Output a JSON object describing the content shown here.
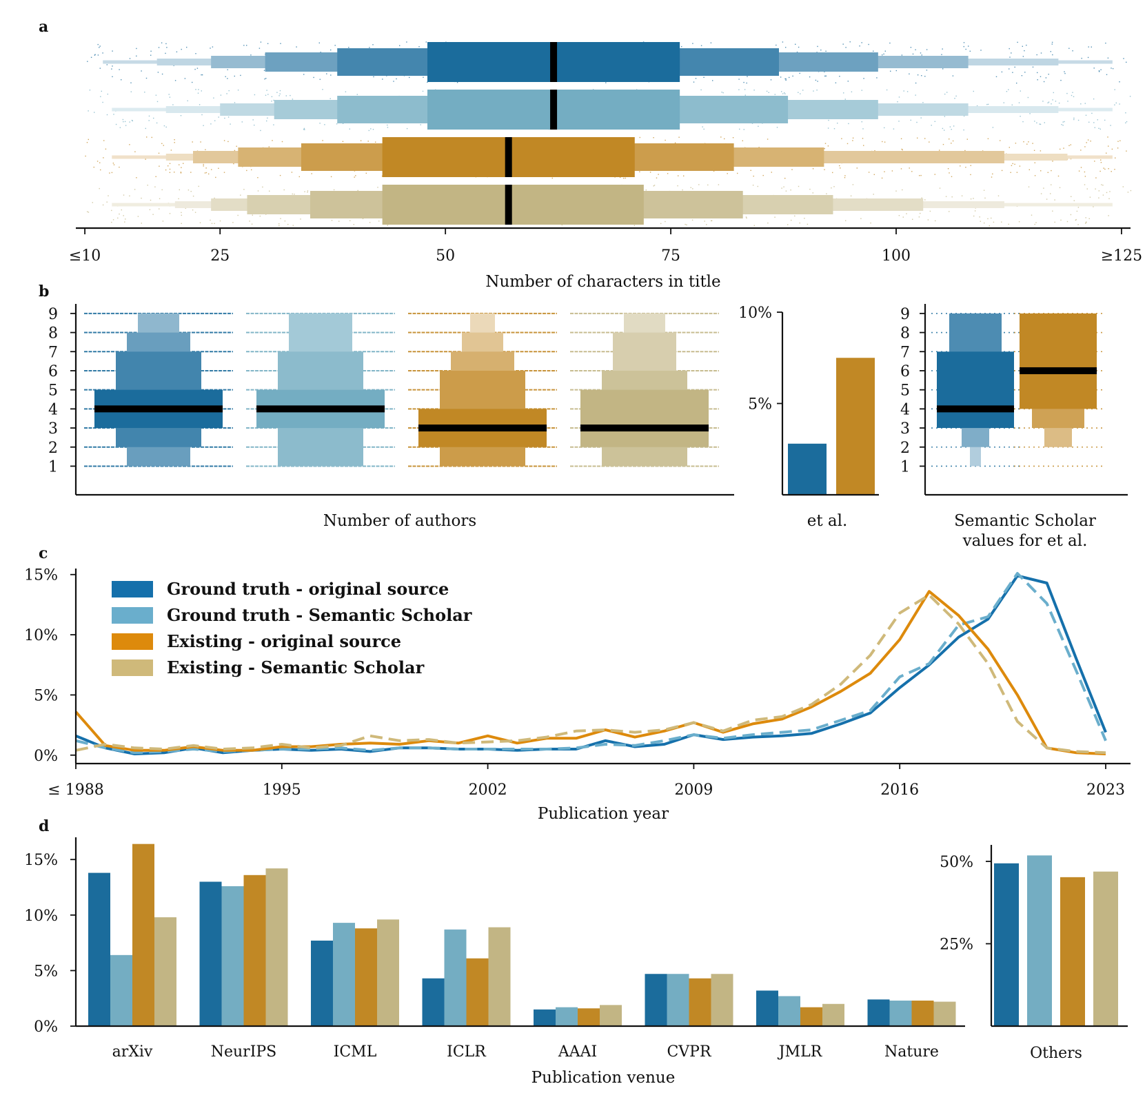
{
  "colors": {
    "gt_orig": "#1b6c9c",
    "gt_ss": "#74adc2",
    "ex_orig": "#c18825",
    "ex_ss": "#c2b584"
  },
  "series_names": [
    "Ground truth - original source",
    "Ground truth - Semantic Scholar",
    "Existing - original source",
    "Existing - Semantic Scholar"
  ],
  "panels": {
    "a": "a",
    "b": "b",
    "c": "c",
    "d": "d"
  },
  "chart_data": [
    {
      "panel": "a",
      "type": "boxen",
      "xlabel": "Number of characters in title",
      "xlim": [
        9,
        126
      ],
      "xticks": [
        10,
        25,
        50,
        75,
        100,
        125
      ],
      "xtick_labels": [
        "≤10",
        "25",
        "50",
        "75",
        "100",
        "≥125"
      ],
      "series": [
        {
          "name": "Ground truth - original source",
          "median": 62,
          "levels": [
            [
              48,
              76
            ],
            [
              38,
              87
            ],
            [
              30,
              98
            ],
            [
              24,
              108
            ],
            [
              18,
              118
            ],
            [
              12,
              124
            ]
          ]
        },
        {
          "name": "Ground truth - Semantic Scholar",
          "median": 62,
          "levels": [
            [
              48,
              76
            ],
            [
              38,
              88
            ],
            [
              31,
              98
            ],
            [
              25,
              108
            ],
            [
              19,
              118
            ],
            [
              13,
              124
            ]
          ]
        },
        {
          "name": "Existing - original source",
          "median": 57,
          "levels": [
            [
              43,
              71
            ],
            [
              34,
              82
            ],
            [
              27,
              92
            ],
            [
              22,
              112
            ],
            [
              19,
              119
            ],
            [
              13,
              124
            ]
          ]
        },
        {
          "name": "Existing - Semantic Scholar",
          "median": 57,
          "levels": [
            [
              43,
              72
            ],
            [
              35,
              83
            ],
            [
              28,
              93
            ],
            [
              24,
              103
            ],
            [
              20,
              112
            ],
            [
              13,
              124
            ]
          ]
        }
      ]
    },
    {
      "panel": "b",
      "type": "boxen",
      "xlabel": "Number of authors",
      "ylim": [
        -0.5,
        9.5
      ],
      "yticks": [
        1,
        2,
        3,
        4,
        5,
        6,
        7,
        8,
        9
      ],
      "series": [
        {
          "name": "Ground truth - original source",
          "median": 4,
          "levels": [
            [
              3,
              5
            ],
            [
              2,
              7
            ],
            [
              1,
              8
            ],
            [
              1,
              9
            ]
          ]
        },
        {
          "name": "Ground truth - Semantic Scholar",
          "median": 4,
          "levels": [
            [
              3,
              5
            ],
            [
              1,
              7
            ],
            [
              1,
              9
            ]
          ]
        },
        {
          "name": "Existing - original source",
          "median": 3,
          "levels": [
            [
              2,
              4
            ],
            [
              1,
              6
            ],
            [
              1,
              7
            ],
            [
              1,
              8
            ],
            [
              1,
              9
            ]
          ]
        },
        {
          "name": "Existing - Semantic Scholar",
          "median": 3,
          "levels": [
            [
              2,
              5
            ],
            [
              1,
              6
            ],
            [
              1,
              8
            ],
            [
              1,
              9
            ]
          ]
        }
      ]
    },
    {
      "panel": "b-et-al",
      "type": "bar",
      "xlabel": "et al.",
      "ylim": [
        0,
        10
      ],
      "yticks": [
        5,
        10
      ],
      "ytick_labels": [
        "5%",
        "10%"
      ],
      "series": [
        {
          "name": "Ground truth - original source",
          "value": 2.8
        },
        {
          "name": "Existing - original source",
          "value": 7.5
        }
      ]
    },
    {
      "panel": "b-semantic-scholar",
      "type": "boxen",
      "xlabel": "Semantic Scholar values for et al.",
      "ylim": [
        -0.5,
        9.5
      ],
      "yticks": [
        1,
        2,
        3,
        4,
        5,
        6,
        7,
        8,
        9
      ],
      "series": [
        {
          "name": "Ground truth - original source",
          "median": 4,
          "levels": [
            [
              3,
              7
            ],
            [
              3,
              9
            ],
            [
              2,
              9
            ],
            [
              1,
              9
            ]
          ]
        },
        {
          "name": "Existing - original source",
          "median": 6,
          "levels": [
            [
              4,
              9
            ],
            [
              3,
              9
            ],
            [
              2,
              9
            ]
          ]
        }
      ]
    },
    {
      "panel": "c",
      "type": "line",
      "xlabel": "Publication year",
      "x": [
        1988,
        1989,
        1990,
        1991,
        1992,
        1993,
        1994,
        1995,
        1996,
        1997,
        1998,
        1999,
        2000,
        2001,
        2002,
        2003,
        2004,
        2005,
        2006,
        2007,
        2008,
        2009,
        2010,
        2011,
        2012,
        2013,
        2014,
        2015,
        2016,
        2017,
        2018,
        2019,
        2020,
        2021,
        2022,
        2023
      ],
      "xticks": [
        1988,
        1995,
        2002,
        2009,
        2016,
        2023
      ],
      "xtick_labels": [
        "≤ 1988",
        "1995",
        "2002",
        "2009",
        "2016",
        "2023"
      ],
      "ylim": [
        -0.7,
        15.5
      ],
      "yticks": [
        0,
        5,
        10,
        15
      ],
      "ytick_labels": [
        "0%",
        "5%",
        "10%",
        "15%"
      ],
      "series": [
        {
          "name": "Ground truth - original source",
          "dash": false,
          "values": [
            1.6,
            0.6,
            0.1,
            0.2,
            0.6,
            0.2,
            0.4,
            0.5,
            0.4,
            0.5,
            0.3,
            0.6,
            0.6,
            0.5,
            0.5,
            0.4,
            0.5,
            0.5,
            1.2,
            0.7,
            0.9,
            1.7,
            1.3,
            1.5,
            1.6,
            1.8,
            2.6,
            3.5,
            5.6,
            7.5,
            9.8,
            11.3,
            14.9,
            14.3,
            8.0,
            1.9
          ]
        },
        {
          "name": "Ground truth - Semantic Scholar",
          "dash": true,
          "values": [
            1.2,
            0.6,
            0.2,
            0.3,
            0.5,
            0.3,
            0.4,
            0.5,
            0.5,
            0.6,
            0.4,
            0.6,
            0.6,
            0.5,
            0.5,
            0.5,
            0.5,
            0.6,
            0.9,
            0.8,
            1.2,
            1.7,
            1.4,
            1.7,
            1.9,
            2.1,
            2.9,
            3.7,
            6.5,
            7.6,
            10.8,
            11.5,
            15.1,
            12.6,
            7.0,
            1.2
          ]
        },
        {
          "name": "Existing - original source",
          "dash": false,
          "values": [
            3.6,
            0.8,
            0.4,
            0.4,
            0.7,
            0.4,
            0.4,
            0.7,
            0.7,
            0.9,
            1.0,
            0.9,
            1.2,
            1.0,
            1.6,
            1.0,
            1.4,
            1.4,
            2.1,
            1.5,
            2.0,
            2.7,
            1.9,
            2.6,
            3.0,
            4.0,
            5.3,
            6.8,
            9.6,
            13.6,
            11.6,
            8.8,
            5.0,
            0.6,
            0.2,
            0.1
          ]
        },
        {
          "name": "Existing - Semantic Scholar",
          "dash": true,
          "values": [
            0.4,
            0.9,
            0.6,
            0.5,
            0.8,
            0.5,
            0.6,
            0.9,
            0.6,
            0.8,
            1.6,
            1.2,
            1.3,
            1.0,
            1.1,
            1.2,
            1.5,
            2.0,
            2.1,
            1.9,
            2.1,
            2.7,
            2.0,
            2.9,
            3.2,
            4.2,
            5.9,
            8.3,
            11.8,
            13.3,
            10.9,
            7.6,
            2.8,
            0.6,
            0.3,
            0.2
          ]
        }
      ]
    },
    {
      "panel": "d",
      "type": "bar",
      "xlabel": "Publication venue",
      "categories": [
        "arXiv",
        "NeurIPS",
        "ICML",
        "ICLR",
        "AAAI",
        "CVPR",
        "JMLR",
        "Nature"
      ],
      "ylim": [
        0,
        17
      ],
      "yticks": [
        0,
        5,
        10,
        15
      ],
      "ytick_labels": [
        "0%",
        "5%",
        "10%",
        "15%"
      ],
      "series": [
        {
          "name": "Ground truth - original source",
          "values": [
            13.8,
            13.0,
            7.7,
            4.3,
            1.5,
            4.7,
            3.2,
            2.4
          ]
        },
        {
          "name": "Ground truth - Semantic Scholar",
          "values": [
            6.4,
            12.6,
            9.3,
            8.7,
            1.7,
            4.7,
            2.7,
            2.3
          ]
        },
        {
          "name": "Existing - original source",
          "values": [
            16.4,
            13.6,
            8.8,
            6.1,
            1.6,
            4.3,
            1.7,
            2.3
          ]
        },
        {
          "name": "Existing - Semantic Scholar",
          "values": [
            9.8,
            14.2,
            9.6,
            8.9,
            1.9,
            4.7,
            2.0,
            2.2
          ]
        }
      ]
    },
    {
      "panel": "d-others",
      "type": "bar",
      "categories": [
        "Others"
      ],
      "ylim": [
        0,
        55
      ],
      "yticks": [
        25,
        50
      ],
      "ytick_labels": [
        "25%",
        "50%"
      ],
      "series": [
        {
          "name": "Ground truth - original source",
          "values": [
            49.4
          ]
        },
        {
          "name": "Ground truth - Semantic Scholar",
          "values": [
            51.8
          ]
        },
        {
          "name": "Existing - original source",
          "values": [
            45.2
          ]
        },
        {
          "name": "Existing - Semantic Scholar",
          "values": [
            46.9
          ]
        }
      ]
    }
  ]
}
